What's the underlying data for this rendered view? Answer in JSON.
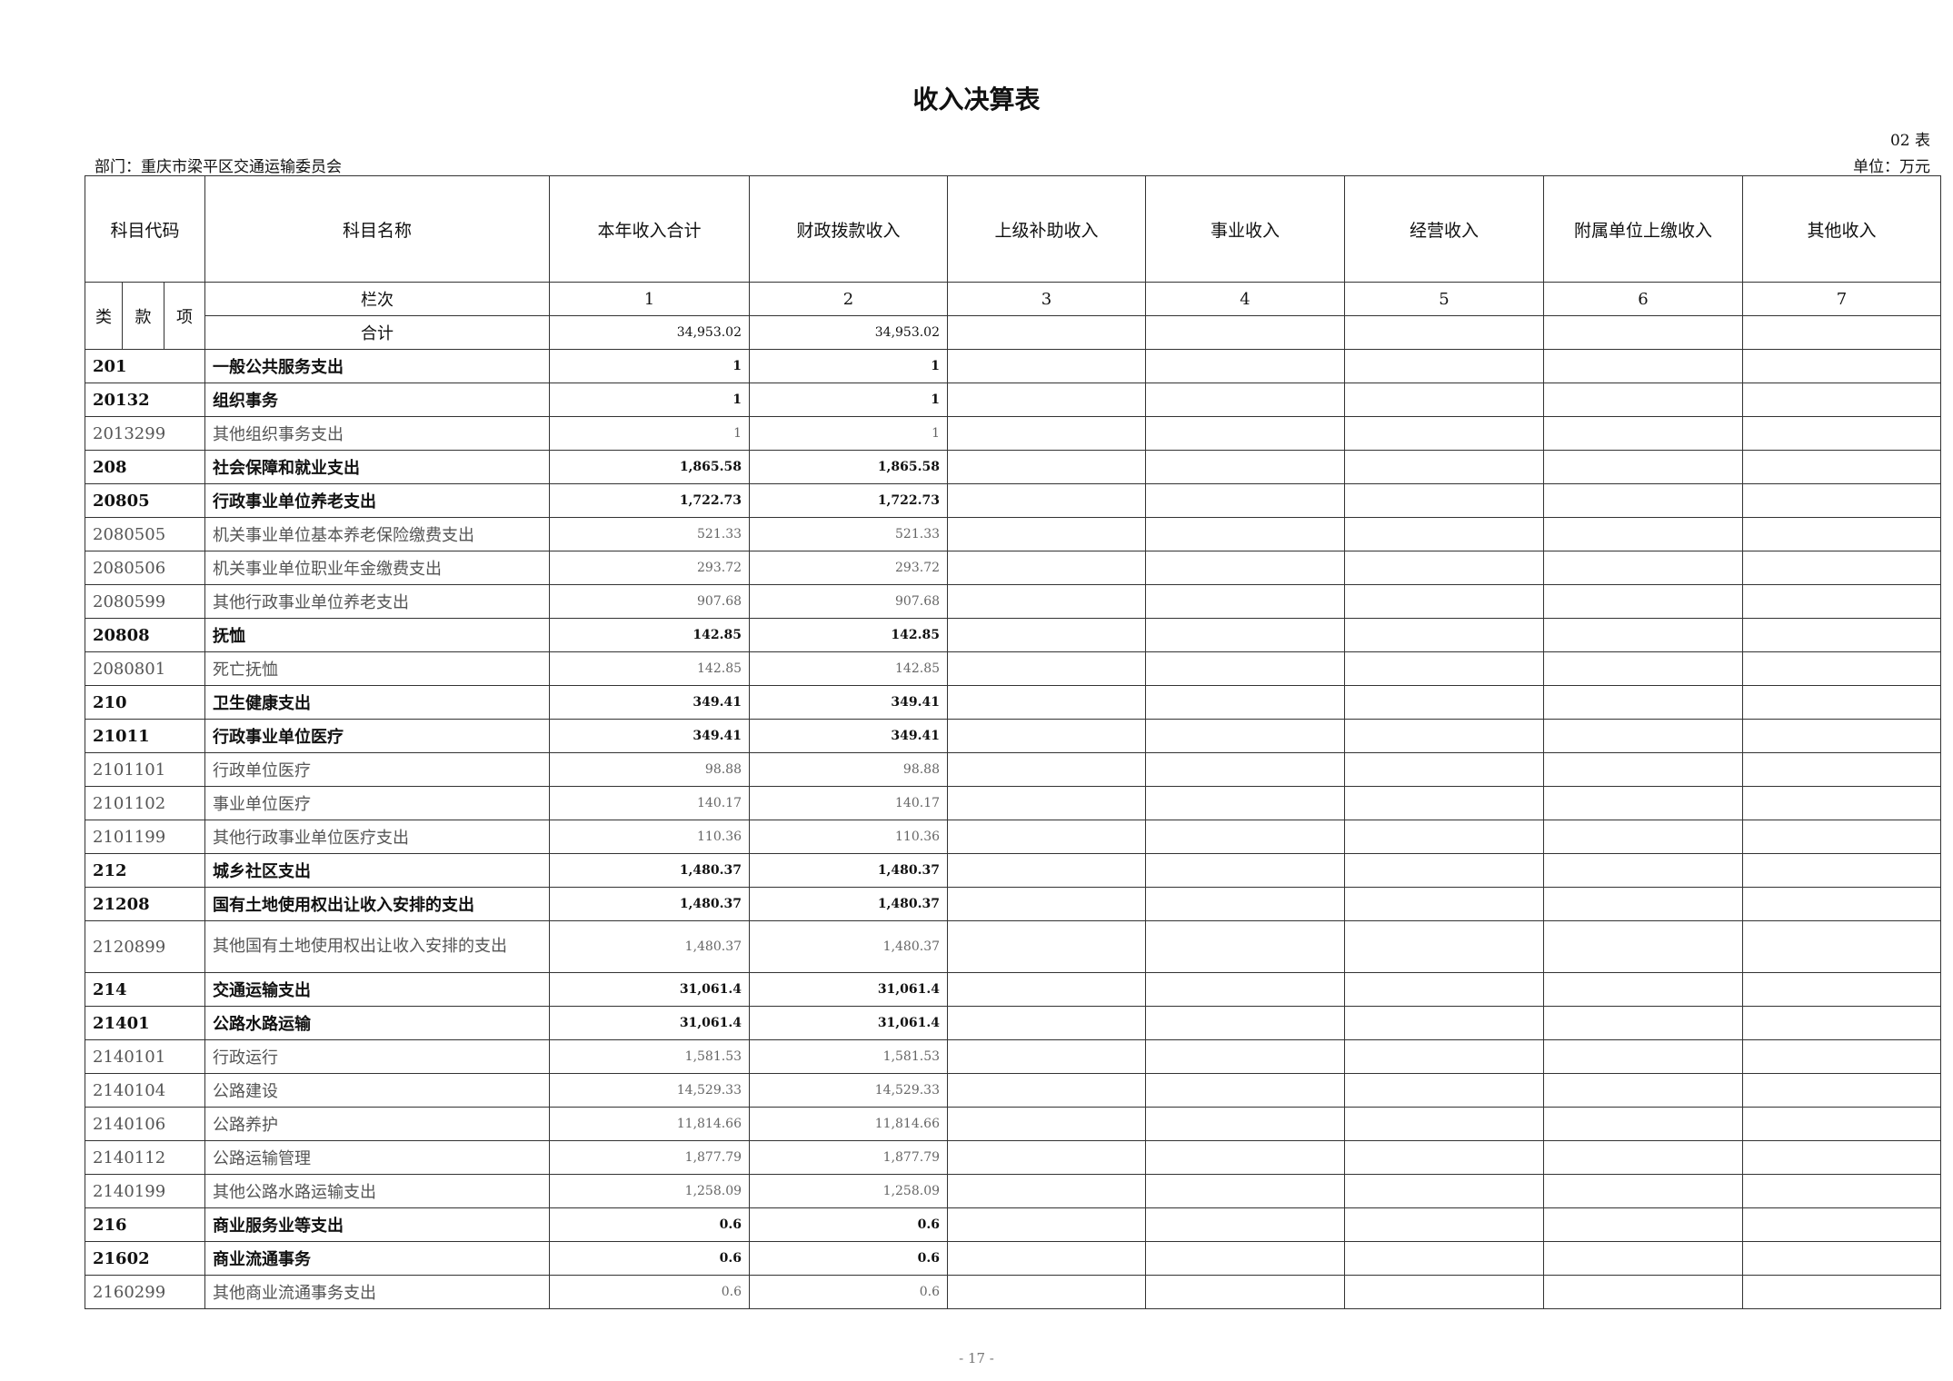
{
  "title": "收入决算表",
  "table_no": "02 表",
  "department": "部门：重庆市梁平区交通运输委员会",
  "unit": "单位：万元",
  "headers": {
    "code": "科目代码",
    "name": "科目名称",
    "cols": [
      "本年收入合计",
      "财政拨款收入",
      "上级补助收入",
      "事业收入",
      "经营收入",
      "附属单位上缴收入",
      "其他收入"
    ]
  },
  "sub_headers": {
    "lei": "类",
    "kuan": "款",
    "xiang": "项",
    "lanci": "栏次",
    "lanci_nums": [
      "1",
      "2",
      "3",
      "4",
      "5",
      "6",
      "7"
    ],
    "total": "合计",
    "total_values": [
      "34,953.02",
      "34,953.02"
    ]
  },
  "rows": [
    {
      "code": "201",
      "name": "一般公共服务支出",
      "total": "1",
      "fiscal": "1",
      "level": "b"
    },
    {
      "code": "20132",
      "name": "组织事务",
      "total": "1",
      "fiscal": "1",
      "level": "b"
    },
    {
      "code": "2013299",
      "name": "其他组织事务支出",
      "total": "1",
      "fiscal": "1",
      "level": "n"
    },
    {
      "code": "208",
      "name": "社会保障和就业支出",
      "total": "1,865.58",
      "fiscal": "1,865.58",
      "level": "b"
    },
    {
      "code": "20805",
      "name": "行政事业单位养老支出",
      "total": "1,722.73",
      "fiscal": "1,722.73",
      "level": "b"
    },
    {
      "code": "2080505",
      "name": "机关事业单位基本养老保险缴费支出",
      "total": "521.33",
      "fiscal": "521.33",
      "level": "n"
    },
    {
      "code": "2080506",
      "name": "机关事业单位职业年金缴费支出",
      "total": "293.72",
      "fiscal": "293.72",
      "level": "n"
    },
    {
      "code": "2080599",
      "name": "其他行政事业单位养老支出",
      "total": "907.68",
      "fiscal": "907.68",
      "level": "n"
    },
    {
      "code": "20808",
      "name": "抚恤",
      "total": "142.85",
      "fiscal": "142.85",
      "level": "b"
    },
    {
      "code": "2080801",
      "name": "死亡抚恤",
      "total": "142.85",
      "fiscal": "142.85",
      "level": "n"
    },
    {
      "code": "210",
      "name": "卫生健康支出",
      "total": "349.41",
      "fiscal": "349.41",
      "level": "b"
    },
    {
      "code": "21011",
      "name": "行政事业单位医疗",
      "total": "349.41",
      "fiscal": "349.41",
      "level": "b"
    },
    {
      "code": "2101101",
      "name": "行政单位医疗",
      "total": "98.88",
      "fiscal": "98.88",
      "level": "n"
    },
    {
      "code": "2101102",
      "name": "事业单位医疗",
      "total": "140.17",
      "fiscal": "140.17",
      "level": "n"
    },
    {
      "code": "2101199",
      "name": "其他行政事业单位医疗支出",
      "total": "110.36",
      "fiscal": "110.36",
      "level": "n"
    },
    {
      "code": "212",
      "name": "城乡社区支出",
      "total": "1,480.37",
      "fiscal": "1,480.37",
      "level": "b"
    },
    {
      "code": "21208",
      "name": "国有土地使用权出让收入安排的支出",
      "total": "1,480.37",
      "fiscal": "1,480.37",
      "level": "b"
    },
    {
      "code": "2120899",
      "name": "其他国有土地使用权出让收入安排的支出",
      "total": "1,480.37",
      "fiscal": "1,480.37",
      "level": "n",
      "tall": true
    },
    {
      "code": "214",
      "name": "交通运输支出",
      "total": "31,061.4",
      "fiscal": "31,061.4",
      "level": "b"
    },
    {
      "code": "21401",
      "name": "公路水路运输",
      "total": "31,061.4",
      "fiscal": "31,061.4",
      "level": "b"
    },
    {
      "code": "2140101",
      "name": "行政运行",
      "total": "1,581.53",
      "fiscal": "1,581.53",
      "level": "n"
    },
    {
      "code": "2140104",
      "name": "公路建设",
      "total": "14,529.33",
      "fiscal": "14,529.33",
      "level": "n"
    },
    {
      "code": "2140106",
      "name": "公路养护",
      "total": "11,814.66",
      "fiscal": "11,814.66",
      "level": "n"
    },
    {
      "code": "2140112",
      "name": "公路运输管理",
      "total": "1,877.79",
      "fiscal": "1,877.79",
      "level": "n"
    },
    {
      "code": "2140199",
      "name": "其他公路水路运输支出",
      "total": "1,258.09",
      "fiscal": "1,258.09",
      "level": "n"
    },
    {
      "code": "216",
      "name": "商业服务业等支出",
      "total": "0.6",
      "fiscal": "0.6",
      "level": "b"
    },
    {
      "code": "21602",
      "name": "商业流通事务",
      "total": "0.6",
      "fiscal": "0.6",
      "level": "b"
    },
    {
      "code": "2160299",
      "name": "其他商业流通事务支出",
      "total": "0.6",
      "fiscal": "0.6",
      "level": "n"
    }
  ],
  "page_number": "- 17 -"
}
